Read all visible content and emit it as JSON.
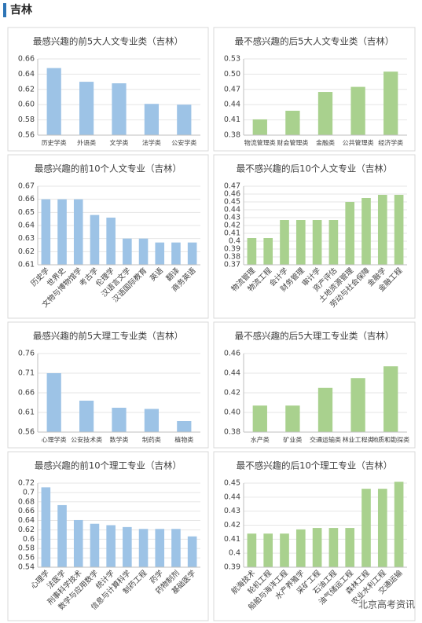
{
  "header": "吉林",
  "watermark": "北京高考资讯",
  "chart_data": [
    {
      "type": "bar",
      "title": "最感兴趣的前5大人文专业类（吉林）",
      "categories": [
        "历史学类",
        "外语类",
        "文学类",
        "法学类",
        "公安学类"
      ],
      "values": [
        0.648,
        0.63,
        0.628,
        0.601,
        0.6
      ],
      "color": "#9dc3e6",
      "ylim": [
        0.56,
        0.66
      ],
      "yticks": [
        0.56,
        0.58,
        {
          "value": 0.6,
          "label": "0.60"
        },
        0.62,
        0.64,
        0.66
      ],
      "grid": true
    },
    {
      "type": "bar",
      "title": "最不感兴趣的后5大人文专业类（吉林）",
      "categories": [
        "物流管理类",
        "财会管理类",
        "金融类",
        "公共管理类",
        "经济学类"
      ],
      "values": [
        0.411,
        0.428,
        0.465,
        0.475,
        0.505
      ],
      "color": "#a9d18e",
      "ylim": [
        0.38,
        0.53
      ],
      "yticks": [
        0.38,
        0.41,
        0.44,
        0.47,
        {
          "value": 0.5,
          "label": "0.50"
        },
        0.53
      ],
      "grid": true
    },
    {
      "type": "bar",
      "title": "最感兴趣的前10个人文专业（吉林）",
      "categories": [
        "历史学",
        "世界史",
        "文物与博物馆学",
        "考古学",
        "伦理学",
        "汉语言文学",
        "汉语国际教育",
        "英语",
        "翻译",
        "商务英语"
      ],
      "values": [
        0.66,
        0.66,
        0.66,
        0.648,
        0.646,
        0.63,
        0.63,
        0.627,
        0.627,
        0.627
      ],
      "color": "#9dc3e6",
      "ylim": [
        0.61,
        0.67
      ],
      "yticks": [
        0.61,
        0.62,
        0.63,
        0.64,
        0.65,
        0.66,
        0.67
      ],
      "grid": true
    },
    {
      "type": "bar",
      "title": "最不感兴趣的后10个人文专业（吉林）",
      "categories": [
        "物流管理",
        "物流工程",
        "会计学",
        "财务管理",
        "审计学",
        "资产评估",
        "土地资源管理",
        "劳动与社会保障",
        "金融学",
        "金融工程"
      ],
      "values": [
        0.404,
        0.404,
        0.427,
        0.427,
        0.427,
        0.427,
        0.45,
        0.455,
        0.459,
        0.459
      ],
      "color": "#a9d18e",
      "ylim": [
        0.37,
        0.47
      ],
      "yticks": [
        0.37,
        0.38,
        0.39,
        0.4,
        0.41,
        0.42,
        0.43,
        0.44,
        0.45,
        0.46,
        0.47
      ],
      "grid": true
    },
    {
      "type": "bar",
      "title": "最感兴趣的前5大理工专业类（吉林）",
      "categories": [
        "心理学类",
        "公安技术类",
        "数学类",
        "制药类",
        "植物类"
      ],
      "values": [
        0.71,
        0.64,
        0.622,
        0.619,
        0.588
      ],
      "color": "#9dc3e6",
      "ylim": [
        0.56,
        0.76
      ],
      "yticks": [
        0.56,
        0.61,
        0.66,
        0.71,
        0.76
      ],
      "grid": true
    },
    {
      "type": "bar",
      "title": "最不感兴趣的后5大理工专业类（吉林）",
      "categories": [
        "水产类",
        "矿业类",
        "交通运输类",
        "林业工程类",
        "地质和勘探类"
      ],
      "values": [
        0.407,
        0.407,
        0.425,
        0.435,
        0.447
      ],
      "color": "#a9d18e",
      "ylim": [
        0.38,
        0.46
      ],
      "yticks": [
        0.38,
        {
          "value": 0.4,
          "label": "0.40"
        },
        0.42,
        0.44,
        0.46
      ],
      "grid": true
    },
    {
      "type": "bar",
      "title": "最感兴趣的前10个理工专业（吉林）",
      "categories": [
        "心理学",
        "法医学",
        "刑事科学技术",
        "数学与应用数学",
        "统计学",
        "信息与计算科学",
        "制药工程",
        "药学",
        "药物制剂",
        "基础医学"
      ],
      "values": [
        0.711,
        0.673,
        0.641,
        0.633,
        0.63,
        0.626,
        0.622,
        0.622,
        0.622,
        0.606
      ],
      "color": "#9dc3e6",
      "ylim": [
        0.54,
        0.72
      ],
      "yticks": [
        0.54,
        0.56,
        0.58,
        0.6,
        0.62,
        0.64,
        0.66,
        0.68,
        0.7,
        0.72
      ],
      "grid": true
    },
    {
      "type": "bar",
      "title": "最不感兴趣的后10个理工专业（吉林）",
      "categories": [
        "航海技术",
        "轮机工程",
        "船舶与海洋工程",
        "水产养殖学",
        "采矿工程",
        "石油工程",
        "油气储运工程",
        "森林工程",
        "农业水利工程",
        "交通运输"
      ],
      "values": [
        0.414,
        0.414,
        0.414,
        0.417,
        0.418,
        0.418,
        0.418,
        0.446,
        0.446,
        0.451
      ],
      "color": "#a9d18e",
      "ylim": [
        0.39,
        0.45
      ],
      "yticks": [
        0.39,
        0.4,
        0.41,
        0.42,
        0.43,
        0.44,
        0.45
      ],
      "grid": true
    }
  ]
}
